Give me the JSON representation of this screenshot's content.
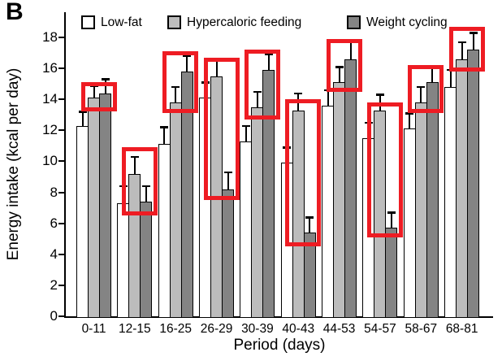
{
  "panel_label": "B",
  "colors": {
    "low_fat": "#ffffff",
    "hypercaloric": "#bcbcbc",
    "weight_cycling": "#848484",
    "highlight": "#ee1c23",
    "axis": "#000000"
  },
  "chart_data": {
    "type": "bar",
    "title": "",
    "xlabel": "Period (days)",
    "ylabel": "Energy intake (kcal per day)",
    "ylim": [
      0,
      18
    ],
    "yticks": [
      0,
      2,
      4,
      6,
      8,
      10,
      12,
      14,
      16,
      18
    ],
    "grid": false,
    "legend_position": "top-inside",
    "error_bars": true,
    "categories": [
      "0-11",
      "12-15",
      "16-25",
      "26-29",
      "30-39",
      "40-43",
      "44-53",
      "54-57",
      "58-67",
      "68-81"
    ],
    "series": [
      {
        "name": "Low-fat",
        "color_key": "low_fat",
        "values": [
          12.3,
          7.3,
          11.1,
          14.1,
          11.3,
          9.9,
          13.6,
          11.5,
          12.1,
          14.8
        ],
        "errors": [
          0.9,
          1.1,
          1.1,
          1.0,
          1.0,
          1.0,
          1.0,
          1.0,
          1.0,
          1.1
        ]
      },
      {
        "name": "Hypercaloric feeding",
        "color_key": "hypercaloric",
        "values": [
          14.1,
          9.2,
          13.8,
          15.5,
          13.5,
          13.3,
          15.1,
          13.3,
          13.8,
          16.6
        ],
        "errors": [
          0.8,
          1.1,
          1.0,
          1.1,
          1.0,
          1.1,
          1.0,
          1.0,
          1.0,
          1.1
        ]
      },
      {
        "name": "Weight cycling",
        "color_key": "weight_cycling",
        "values": [
          14.4,
          7.4,
          15.8,
          8.2,
          15.9,
          5.4,
          16.6,
          5.7,
          15.1,
          17.2
        ],
        "errors": [
          0.9,
          1.0,
          1.0,
          1.1,
          1.0,
          1.0,
          1.1,
          1.0,
          1.0,
          1.1
        ]
      }
    ],
    "highlights": [
      {
        "category": "0-11",
        "series": [
          "Hypercaloric feeding",
          "Weight cycling"
        ],
        "from": 13.2,
        "to": 15.1
      },
      {
        "category": "12-15",
        "series": [
          "Hypercaloric feeding",
          "Weight cycling"
        ],
        "from": 6.5,
        "to": 10.9
      },
      {
        "category": "16-25",
        "series": [
          "Hypercaloric feeding",
          "Weight cycling"
        ],
        "from": 13.1,
        "to": 17.1
      },
      {
        "category": "26-29",
        "series": [
          "Hypercaloric feeding",
          "Weight cycling"
        ],
        "from": 7.5,
        "to": 16.7
      },
      {
        "category": "30-39",
        "series": [
          "Hypercaloric feeding",
          "Weight cycling"
        ],
        "from": 12.7,
        "to": 17.2
      },
      {
        "category": "40-43",
        "series": [
          "Hypercaloric feeding",
          "Weight cycling"
        ],
        "from": 4.5,
        "to": 14.0
      },
      {
        "category": "44-53",
        "series": [
          "Hypercaloric feeding",
          "Weight cycling"
        ],
        "from": 14.5,
        "to": 17.9
      },
      {
        "category": "54-57",
        "series": [
          "Hypercaloric feeding",
          "Weight cycling"
        ],
        "from": 5.1,
        "to": 13.8
      },
      {
        "category": "58-67",
        "series": [
          "Hypercaloric feeding",
          "Weight cycling"
        ],
        "from": 13.1,
        "to": 16.2
      },
      {
        "category": "68-81",
        "series": [
          "Hypercaloric feeding",
          "Weight cycling"
        ],
        "from": 15.8,
        "to": 18.7
      }
    ]
  }
}
